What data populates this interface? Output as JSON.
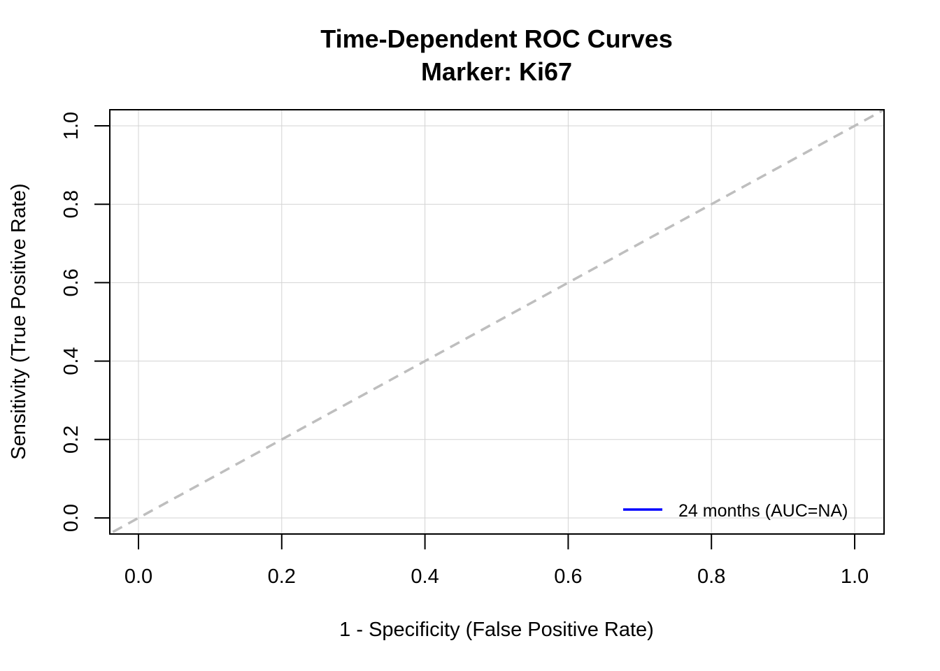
{
  "chart_data": {
    "type": "line",
    "title": "Time-Dependent ROC Curves",
    "subtitle": "Marker: Ki67",
    "xlabel": "1 - Specificity (False Positive Rate)",
    "ylabel": "Sensitivity (True Positive Rate)",
    "xlim": [
      0,
      1
    ],
    "ylim": [
      0,
      1
    ],
    "x_ticks": [
      0,
      0.2,
      0.4,
      0.6,
      0.8,
      1.0
    ],
    "y_ticks": [
      0,
      0.2,
      0.4,
      0.6,
      0.8,
      1.0
    ],
    "x_tick_labels": [
      "0.0",
      "0.2",
      "0.4",
      "0.6",
      "0.8",
      "1.0"
    ],
    "y_tick_labels": [
      "0.0",
      "0.2",
      "0.4",
      "0.6",
      "0.8",
      "1.0"
    ],
    "grid": true,
    "legend_position": "bottom-right",
    "reference_line": {
      "x": [
        0,
        1
      ],
      "y": [
        0,
        1
      ],
      "style": "dashed",
      "color": "#bebebe"
    },
    "series": [
      {
        "name": "24 months (AUC=NA)",
        "color": "#0000ff",
        "x": [],
        "y": []
      }
    ]
  }
}
